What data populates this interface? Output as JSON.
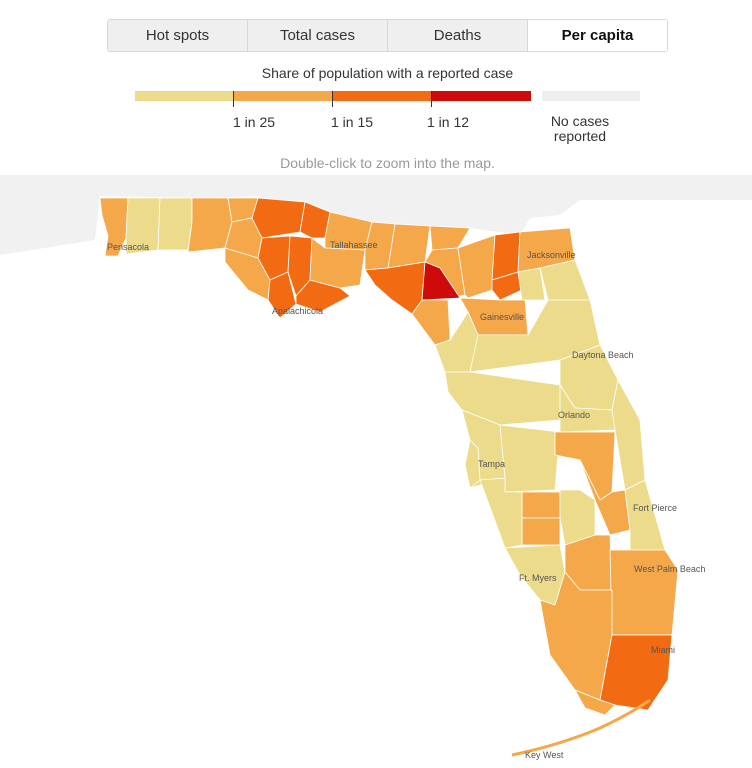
{
  "tabs": [
    {
      "label": "Hot spots",
      "active": false
    },
    {
      "label": "Total cases",
      "active": false
    },
    {
      "label": "Deaths",
      "active": false
    },
    {
      "label": "Per capita",
      "active": true
    }
  ],
  "legend": {
    "title": "Share of population with a reported case",
    "colors": [
      "#ebdb8a",
      "#f5a84a",
      "#f26b12",
      "#cf0a0a"
    ],
    "ticks": [
      "1 in 25",
      "1 in 15",
      "1 in 12"
    ],
    "no_cases_color": "#eeeeee",
    "no_cases_label_1": "No cases",
    "no_cases_label_2": "reported"
  },
  "hint": "Double-click to zoom into the map.",
  "cities": [
    {
      "name": "Pensacola"
    },
    {
      "name": "Tallahassee"
    },
    {
      "name": "Apalachicola"
    },
    {
      "name": "Jacksonville"
    },
    {
      "name": "Gainesville"
    },
    {
      "name": "Daytona Beach"
    },
    {
      "name": "Orlando"
    },
    {
      "name": "Tampa"
    },
    {
      "name": "Fort Pierce"
    },
    {
      "name": "Ft. Myers"
    },
    {
      "name": "West Palm Beach"
    },
    {
      "name": "Miami"
    },
    {
      "name": "Key West"
    }
  ]
}
